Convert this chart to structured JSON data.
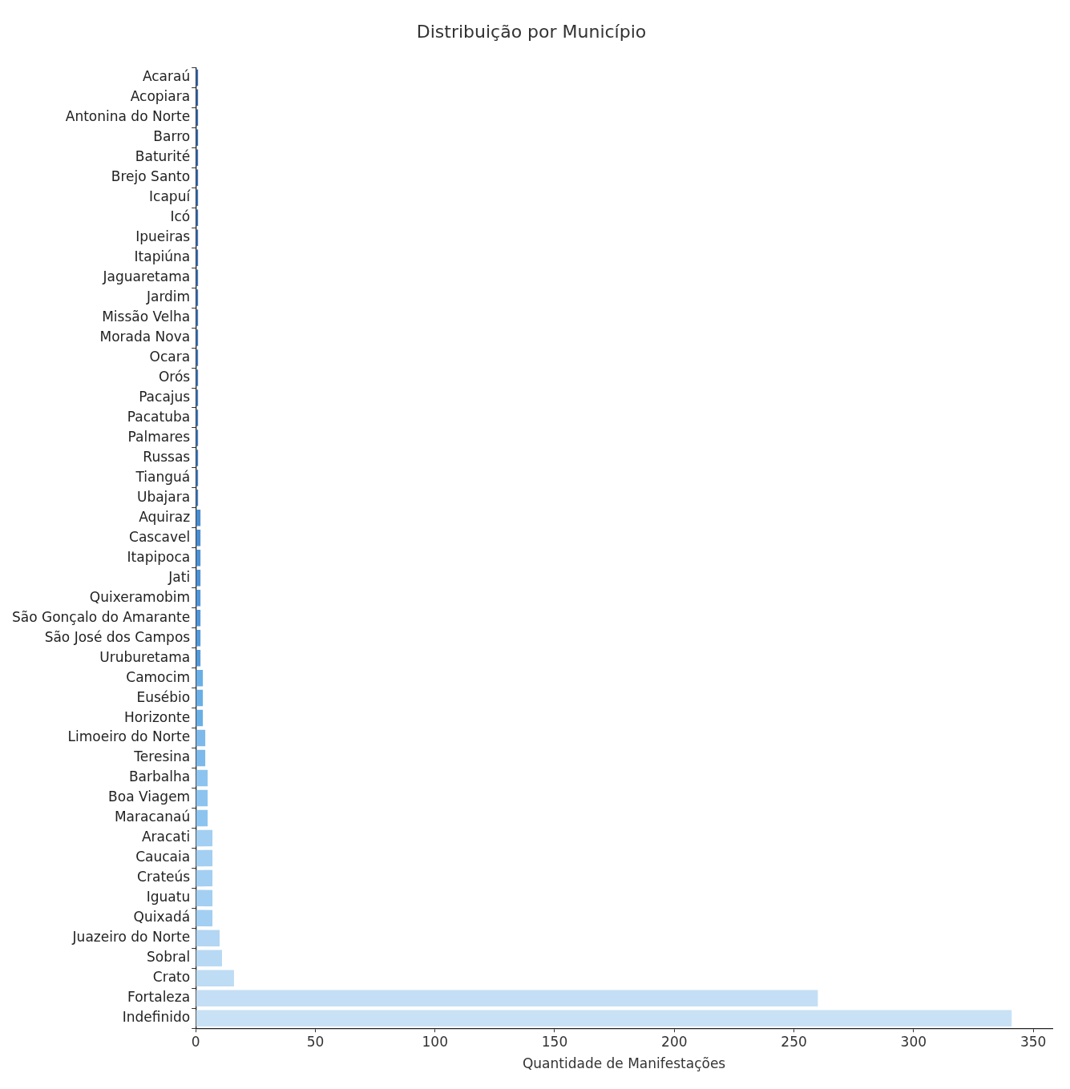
{
  "chart_data": {
    "type": "bar",
    "orientation": "horizontal",
    "title": "Distribuição por Município",
    "xlabel": "Quantidade de Manifestações",
    "categories": [
      "Acaraú",
      "Acopiara",
      "Antonina do Norte",
      "Barro",
      "Baturité",
      "Brejo Santo",
      "Icapuí",
      "Icó",
      "Ipueiras",
      "Itapiúna",
      "Jaguaretama",
      "Jardim",
      "Missão Velha",
      "Morada Nova",
      "Ocara",
      "Orós",
      "Pacajus",
      "Pacatuba",
      "Palmares",
      "Russas",
      "Tianguá",
      "Ubajara",
      "Aquiraz",
      "Cascavel",
      "Itapipoca",
      "Jati",
      "Quixeramobim",
      "São Gonçalo do Amarante",
      "São José dos Campos",
      "Uruburetama",
      "Camocim",
      "Eusébio",
      "Horizonte",
      "Limoeiro do Norte",
      "Teresina",
      "Barbalha",
      "Boa Viagem",
      "Maracanaú",
      "Aracati",
      "Caucaia",
      "Crateús",
      "Iguatu",
      "Quixadá",
      "Juazeiro do Norte",
      "Sobral",
      "Crato",
      "Fortaleza",
      "Indefinido"
    ],
    "values": [
      1,
      1,
      1,
      1,
      1,
      1,
      1,
      1,
      1,
      1,
      1,
      1,
      1,
      1,
      1,
      1,
      1,
      1,
      1,
      1,
      1,
      1,
      2,
      2,
      2,
      2,
      2,
      2,
      2,
      2,
      3,
      3,
      3,
      4,
      4,
      5,
      5,
      5,
      7,
      7,
      7,
      7,
      7,
      10,
      11,
      16,
      260,
      341
    ],
    "colors": [
      "#3a6aa8",
      "#3a6aa8",
      "#3b6caa",
      "#3b6caa",
      "#3c6ead",
      "#3c6ead",
      "#3d70af",
      "#3d70af",
      "#3e72b2",
      "#3e72b2",
      "#3f74b4",
      "#3f74b4",
      "#4076b6",
      "#4076b6",
      "#4178b8",
      "#4178b8",
      "#427aba",
      "#427aba",
      "#437cbc",
      "#437cbc",
      "#447ebe",
      "#447ebe",
      "#4a8ccf",
      "#4a8ccf",
      "#4d90d3",
      "#4d90d3",
      "#5094d6",
      "#5094d6",
      "#5398d9",
      "#5398d9",
      "#6aaee6",
      "#6aaee6",
      "#6aaee6",
      "#7db9ea",
      "#7db9ea",
      "#8cc4ef",
      "#8cc4ef",
      "#8cc4ef",
      "#a3cff2",
      "#a3cff2",
      "#a3cff2",
      "#a3cff2",
      "#a3cff2",
      "#b2d6f3",
      "#b8d9f4",
      "#bedcf4",
      "#c4dff5",
      "#c8e1f5"
    ],
    "xlim": [
      0,
      358
    ],
    "xticks": [
      0,
      50,
      100,
      150,
      200,
      250,
      300,
      350
    ],
    "grid": false,
    "legend": false
  }
}
